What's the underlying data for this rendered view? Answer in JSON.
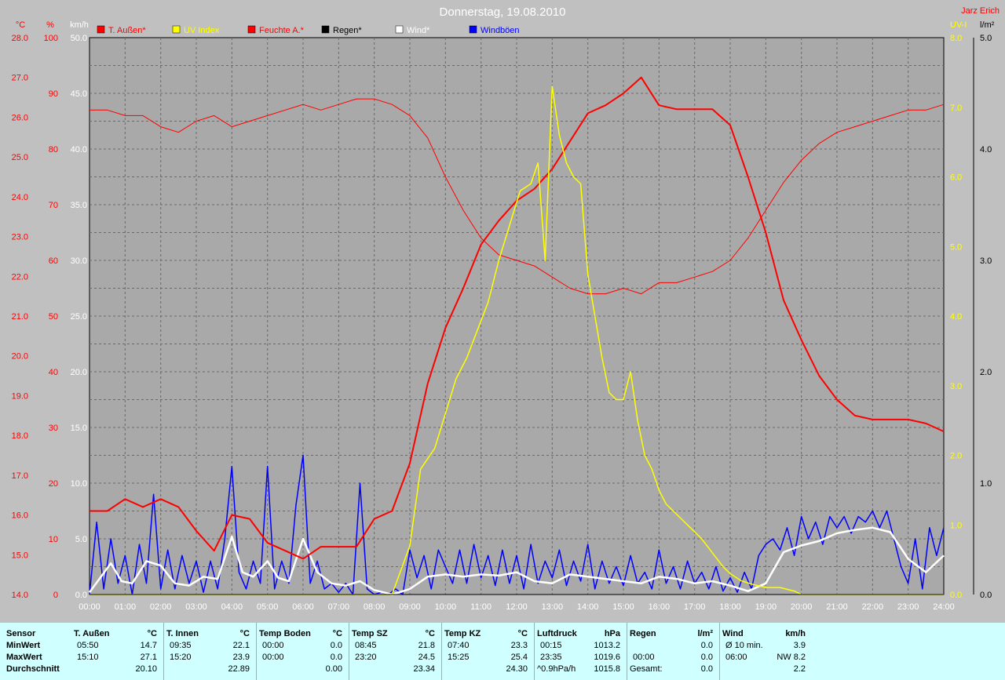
{
  "colors": {
    "background": "#c0c0c0",
    "plot_bg": "#a9a9a9",
    "grid": "#6f6f6f",
    "temp": "#ff0000",
    "uv": "#ffff00",
    "humidity": "#ff0000",
    "rain": "#000000",
    "wind": "#ffffff",
    "gust": "#0000ff",
    "summary_bg": "#cfffff"
  },
  "chart_data": {
    "type": "line",
    "title": "Donnerstag, 19.08.2010",
    "author": "Jarz Erich",
    "x_tick_labels": [
      "00:00",
      "01:00",
      "02:00",
      "03:00",
      "04:00",
      "05:00",
      "06:00",
      "07:00",
      "08:00",
      "09:00",
      "10:00",
      "11:00",
      "12:00",
      "13:00",
      "14:00",
      "15:00",
      "16:00",
      "17:00",
      "18:00",
      "19:00",
      "20:00",
      "21:00",
      "22:00",
      "23:00",
      "24:00"
    ],
    "xlim": [
      0,
      24
    ],
    "axes": {
      "temp": {
        "unit": "°C",
        "ylim": [
          14,
          28
        ],
        "ticks": [
          "14.0",
          "15.0",
          "16.0",
          "17.0",
          "18.0",
          "19.0",
          "20.0",
          "21.0",
          "22.0",
          "23.0",
          "24.0",
          "25.0",
          "26.0",
          "27.0",
          "28.0"
        ]
      },
      "humidity": {
        "unit": "%",
        "ylim": [
          0,
          100
        ],
        "ticks": [
          "0",
          "10",
          "20",
          "30",
          "40",
          "50",
          "60",
          "70",
          "80",
          "90",
          "100"
        ]
      },
      "wind": {
        "unit": "km/h",
        "ylim": [
          0,
          50
        ],
        "ticks": [
          "0.0",
          "5.0",
          "10.0",
          "15.0",
          "20.0",
          "25.0",
          "30.0",
          "35.0",
          "40.0",
          "45.0",
          "50.0"
        ]
      },
      "uv": {
        "unit": "UV-I",
        "ylim": [
          0,
          8
        ],
        "ticks": [
          "0.0",
          "1.0",
          "2.0",
          "3.0",
          "4.0",
          "5.0",
          "6.0",
          "7.0",
          "8.0"
        ]
      },
      "rain": {
        "unit": "l/m²",
        "ylim": [
          0,
          5
        ],
        "ticks": [
          "0.0",
          "1.0",
          "2.0",
          "3.0",
          "4.0",
          "5.0"
        ]
      }
    },
    "legend": [
      {
        "label": "T. Außen*",
        "color": "#ff0000"
      },
      {
        "label": "UV Index",
        "color": "#ffff00"
      },
      {
        "label": "Feuchte A.*",
        "color": "#ff0000"
      },
      {
        "label": "Regen*",
        "color": "#000000"
      },
      {
        "label": "Wind*",
        "color": "#ffffff"
      },
      {
        "label": "Windböen",
        "color": "#0000ff"
      }
    ],
    "series": [
      {
        "name": "T. Außen*",
        "axis": "temp",
        "color": "#ff0000",
        "width": 2,
        "x": [
          0,
          0.5,
          1,
          1.5,
          2,
          2.5,
          3,
          3.5,
          4,
          4.5,
          5,
          5.5,
          6,
          6.5,
          7,
          7.5,
          8,
          8.5,
          9,
          9.5,
          10,
          10.5,
          11,
          11.5,
          12,
          12.5,
          13,
          13.5,
          14,
          14.5,
          15,
          15.5,
          16,
          16.5,
          17,
          17.5,
          18,
          18.5,
          19,
          19.5,
          20,
          20.5,
          21,
          21.5,
          22,
          22.5,
          23,
          23.5,
          24
        ],
        "y": [
          16.1,
          16.1,
          16.4,
          16.2,
          16.4,
          16.2,
          15.6,
          15.1,
          16.0,
          15.9,
          15.3,
          15.1,
          14.9,
          15.2,
          15.2,
          15.2,
          15.9,
          16.1,
          17.3,
          19.3,
          20.7,
          21.7,
          22.8,
          23.4,
          23.9,
          24.2,
          24.7,
          25.4,
          26.1,
          26.3,
          26.6,
          27.0,
          26.3,
          26.2,
          26.2,
          26.2,
          25.8,
          24.5,
          23.1,
          21.4,
          20.4,
          19.5,
          18.9,
          18.5,
          18.4,
          18.4,
          18.4,
          18.3,
          18.1
        ]
      },
      {
        "name": "Feuchte A.*",
        "axis": "humidity",
        "color": "#ff0000",
        "width": 1,
        "x": [
          0,
          0.5,
          1,
          1.5,
          2,
          2.5,
          3,
          3.5,
          4,
          4.5,
          5,
          5.5,
          6,
          6.5,
          7,
          7.5,
          8,
          8.5,
          9,
          9.5,
          10,
          10.5,
          11,
          11.5,
          12,
          12.5,
          13,
          13.5,
          14,
          14.5,
          15,
          15.5,
          16,
          16.5,
          17,
          17.5,
          18,
          18.5,
          19,
          19.5,
          20,
          20.5,
          21,
          21.5,
          22,
          22.5,
          23,
          23.5,
          24
        ],
        "y": [
          87,
          87,
          86,
          86,
          84,
          83,
          85,
          86,
          84,
          85,
          86,
          87,
          88,
          87,
          88,
          89,
          89,
          88,
          86,
          82,
          75,
          69,
          64,
          61,
          60,
          59,
          57,
          55,
          54,
          54,
          55,
          54,
          56,
          56,
          57,
          58,
          60,
          64,
          69,
          74,
          78,
          81,
          83,
          84,
          85,
          86,
          87,
          87,
          88
        ]
      },
      {
        "name": "UV Index",
        "axis": "uv",
        "color": "#ffff00",
        "width": 1.5,
        "x": [
          0,
          8.5,
          9.0,
          9.3,
          9.7,
          10,
          10.3,
          10.6,
          10.9,
          11.2,
          11.5,
          11.8,
          12.1,
          12.4,
          12.6,
          12.8,
          13.0,
          13.2,
          13.4,
          13.6,
          13.8,
          14.0,
          14.2,
          14.4,
          14.6,
          14.8,
          15.0,
          15.2,
          15.4,
          15.6,
          15.8,
          16.0,
          16.2,
          16.4,
          16.6,
          16.8,
          17.0,
          17.2,
          17.5,
          17.8,
          18.0,
          18.3,
          18.6,
          19.0,
          19.4,
          19.8,
          20.0,
          24
        ],
        "y": [
          0,
          0,
          0.7,
          1.8,
          2.1,
          2.6,
          3.1,
          3.4,
          3.8,
          4.2,
          4.8,
          5.3,
          5.8,
          5.9,
          6.2,
          4.8,
          7.3,
          6.6,
          6.2,
          6.0,
          5.9,
          4.6,
          4.0,
          3.4,
          2.9,
          2.8,
          2.8,
          3.2,
          2.5,
          2.0,
          1.8,
          1.5,
          1.3,
          1.2,
          1.1,
          1.0,
          0.9,
          0.8,
          0.6,
          0.4,
          0.3,
          0.2,
          0.15,
          0.1,
          0.1,
          0.05,
          0,
          0
        ]
      },
      {
        "name": "Wind*",
        "axis": "wind",
        "color": "#ffffff",
        "width": 2.5,
        "x": [
          0,
          0.3,
          0.6,
          0.9,
          1.2,
          1.6,
          2.0,
          2.4,
          2.8,
          3.2,
          3.6,
          4.0,
          4.3,
          4.6,
          5.0,
          5.3,
          5.6,
          6.0,
          6.4,
          6.8,
          7.2,
          7.6,
          8.0,
          8.5,
          9.0,
          9.5,
          10,
          10.5,
          11,
          11.5,
          12,
          12.5,
          13,
          13.5,
          14,
          14.5,
          15,
          15.5,
          16,
          16.5,
          17,
          17.5,
          18,
          18.5,
          19,
          19.5,
          20,
          20.5,
          21,
          21.5,
          22,
          22.5,
          23,
          23.5,
          24
        ],
        "y": [
          0.2,
          1.5,
          2.8,
          1.2,
          1.0,
          3.0,
          2.6,
          1.0,
          0.8,
          1.6,
          1.4,
          5.2,
          2.0,
          1.6,
          3.0,
          1.5,
          1.2,
          5.0,
          2.0,
          1.0,
          0.8,
          1.2,
          0.4,
          0.0,
          0.5,
          1.6,
          1.8,
          1.6,
          1.8,
          1.7,
          2.0,
          1.2,
          1.0,
          1.8,
          1.6,
          1.4,
          1.2,
          1.0,
          1.6,
          1.4,
          1.0,
          1.2,
          0.8,
          0.3,
          1.0,
          3.8,
          4.4,
          4.8,
          5.5,
          5.8,
          6.0,
          5.6,
          3.2,
          2.0,
          3.5
        ]
      },
      {
        "name": "Windböen",
        "axis": "wind",
        "color": "#0000ff",
        "width": 1.5,
        "x": [
          0,
          0.2,
          0.4,
          0.6,
          0.8,
          1.0,
          1.2,
          1.4,
          1.6,
          1.8,
          2.0,
          2.2,
          2.4,
          2.6,
          2.8,
          3.0,
          3.2,
          3.4,
          3.6,
          3.8,
          4.0,
          4.2,
          4.4,
          4.6,
          4.8,
          5.0,
          5.2,
          5.4,
          5.6,
          5.8,
          6.0,
          6.2,
          6.4,
          6.6,
          6.8,
          7.0,
          7.2,
          7.4,
          7.6,
          7.8,
          8.0,
          8.2,
          8.4,
          8.6,
          8.8,
          9.0,
          9.2,
          9.4,
          9.6,
          9.8,
          10.0,
          10.2,
          10.4,
          10.6,
          10.8,
          11.0,
          11.2,
          11.4,
          11.6,
          11.8,
          12.0,
          12.2,
          12.4,
          12.6,
          12.8,
          13.0,
          13.2,
          13.4,
          13.6,
          13.8,
          14.0,
          14.2,
          14.4,
          14.6,
          14.8,
          15.0,
          15.2,
          15.4,
          15.6,
          15.8,
          16.0,
          16.2,
          16.4,
          16.6,
          16.8,
          17.0,
          17.2,
          17.4,
          17.6,
          17.8,
          18.0,
          18.2,
          18.4,
          18.6,
          18.8,
          19.0,
          19.2,
          19.4,
          19.6,
          19.8,
          20.0,
          20.2,
          20.4,
          20.6,
          20.8,
          21.0,
          21.2,
          21.4,
          21.6,
          21.8,
          22.0,
          22.2,
          22.4,
          22.6,
          22.8,
          23.0,
          23.2,
          23.4,
          23.6,
          23.8,
          24.0
        ],
        "y": [
          0,
          6.5,
          0.5,
          5.0,
          1.0,
          3.5,
          0,
          4.5,
          1.0,
          9.0,
          0.5,
          4.0,
          0.5,
          3.5,
          1.0,
          3.0,
          0.2,
          3.0,
          0.5,
          5.0,
          11.5,
          2.0,
          0.5,
          3.0,
          1.0,
          11.5,
          0.5,
          3.0,
          1.0,
          8.0,
          12.5,
          1.0,
          3.0,
          0.5,
          1.0,
          0.2,
          1.0,
          0,
          10.0,
          0.5,
          0,
          0.2,
          0,
          0.5,
          0,
          4.0,
          1.5,
          3.5,
          0.5,
          4.0,
          2.5,
          1.0,
          4.0,
          1.0,
          4.5,
          1.5,
          3.5,
          0.8,
          4.0,
          1.0,
          3.5,
          0.5,
          4.5,
          1.0,
          3.0,
          1.5,
          4.0,
          0.8,
          3.0,
          1.2,
          4.5,
          0.5,
          3.0,
          1.0,
          2.5,
          0.8,
          3.5,
          1.0,
          2.0,
          0.5,
          4.0,
          1.0,
          2.5,
          0.5,
          3.0,
          1.0,
          2.0,
          0.5,
          2.5,
          0.3,
          1.5,
          0.2,
          2.0,
          0.5,
          3.5,
          4.5,
          5.0,
          4.0,
          6.0,
          3.5,
          7.0,
          5.0,
          6.5,
          4.5,
          7.0,
          6.0,
          7.0,
          5.5,
          7.0,
          6.5,
          7.5,
          6.0,
          7.5,
          5.0,
          2.5,
          1.0,
          5.0,
          0.5,
          6.0,
          3.5,
          6.0
        ]
      },
      {
        "name": "Regen*",
        "axis": "rain",
        "color": "#000000",
        "width": 1,
        "x": [
          0,
          24
        ],
        "y": [
          0,
          0
        ]
      }
    ]
  },
  "summary": {
    "row_labels": {
      "sensor": "Sensor",
      "min": "MinWert",
      "max": "MaxWert",
      "avg": "Durchschnitt"
    },
    "groups": [
      {
        "title": "T. Außen",
        "unit": "°C",
        "min_time": "05:50",
        "min_val": "14.7",
        "max_time": "15:10",
        "max_val": "27.1",
        "avg_time": "",
        "avg_val": "20.10"
      },
      {
        "title": "T. Innen",
        "unit": "°C",
        "min_time": "09:35",
        "min_val": "22.1",
        "max_time": "15:20",
        "max_val": "23.9",
        "avg_time": "",
        "avg_val": "22.89"
      },
      {
        "title": "Temp Boden",
        "unit": "°C",
        "min_time": "00:00",
        "min_val": "0.0",
        "max_time": "00:00",
        "max_val": "0.0",
        "avg_time": "",
        "avg_val": "0.00"
      },
      {
        "title": "Temp SZ",
        "unit": "°C",
        "min_time": "08:45",
        "min_val": "21.8",
        "max_time": "23:20",
        "max_val": "24.5",
        "avg_time": "",
        "avg_val": "23.34"
      },
      {
        "title": "Temp KZ",
        "unit": "°C",
        "min_time": "07:40",
        "min_val": "23.3",
        "max_time": "15:25",
        "max_val": "25.4",
        "avg_time": "",
        "avg_val": "24.30"
      },
      {
        "title": "Luftdruck",
        "unit": "hPa",
        "min_time": "00:15",
        "min_val": "1013.2",
        "max_time": "23:35",
        "max_val": "1019.6",
        "avg_time": "^0.9hPa/h",
        "avg_val": "1015.8"
      },
      {
        "title": "Regen",
        "unit": "l/m²",
        "min_time": "",
        "min_val": "0.0",
        "max_time": "00:00",
        "max_val": "0.0",
        "avg_time": "Gesamt:",
        "avg_val": "0.0"
      },
      {
        "title": "Wind",
        "unit": "km/h",
        "min_time": "Ø 10 min.",
        "min_val": "3.9",
        "max_time": "06:00",
        "max_val": "NW 8.2",
        "avg_time": "",
        "avg_val": "2.2"
      }
    ]
  }
}
